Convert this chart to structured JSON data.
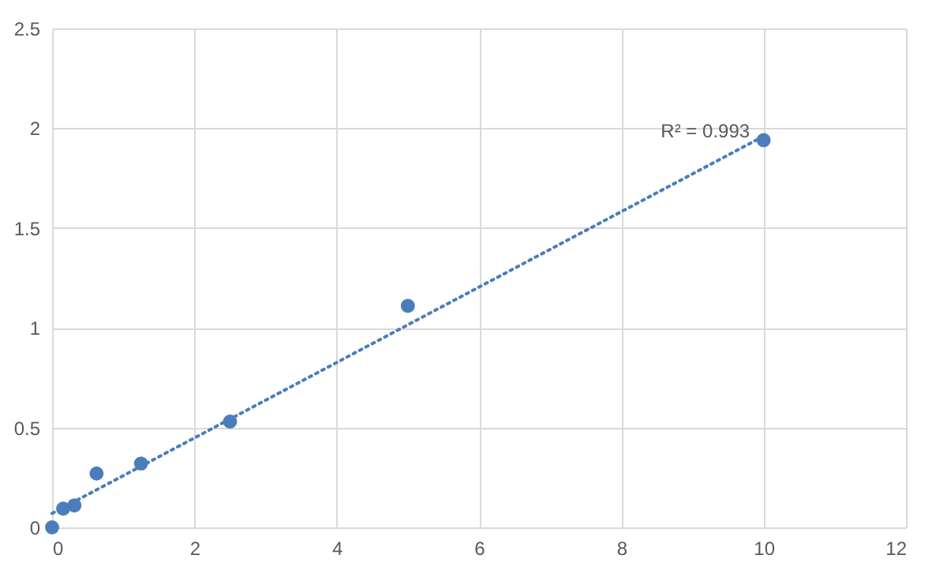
{
  "chart_data": {
    "type": "scatter",
    "series": [
      {
        "color": "#4a7ebb",
        "marker": "circle",
        "x": [
          0,
          0.156,
          0.313,
          0.625,
          1.25,
          2.5,
          5,
          10
        ],
        "values": [
          0,
          0.094,
          0.11,
          0.27,
          0.32,
          0.53,
          1.11,
          1.94
        ]
      },
      {
        "type": "line",
        "color": "#4a7ebb",
        "marker": "none",
        "line_style": "dotted",
        "x": [
          0,
          10
        ],
        "values": [
          0.07,
          1.96
        ]
      }
    ],
    "annotations": [
      "R² = 0.993"
    ],
    "xlim": [
      0,
      12
    ],
    "xticks": [
      0,
      2,
      4,
      6,
      8,
      10,
      12
    ],
    "ylim": [
      0,
      2.5
    ],
    "yticks": [
      0,
      0.5,
      1,
      1.5,
      2,
      2.5
    ],
    "grid": true
  }
}
